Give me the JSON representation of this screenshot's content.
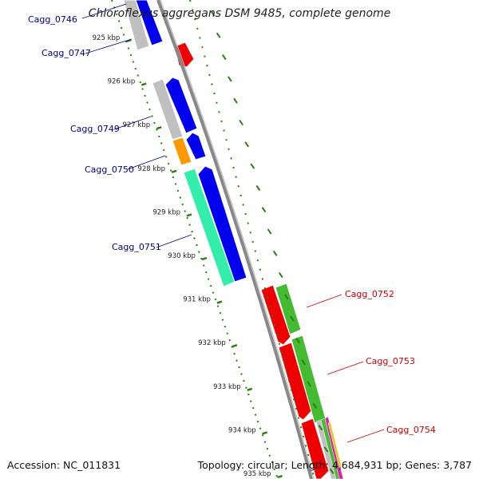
{
  "title": "Chloroflexus aggregans DSM 9485, complete genome",
  "accession_text": "Accession: NC_011831",
  "summary_text": "Topology: circular; Length: 4,684,931 bp; Genes: 3,787",
  "colors": {
    "forward_label": "#00008b",
    "reverse_label": "#cc0000",
    "backbone": "#808080",
    "ticks": "#2e7d12",
    "cds_forward": "#0000ee",
    "cds_reverse": "#ee0000",
    "gc_green": "#44bb33",
    "teal": "#33eeaa",
    "orange": "#ff9900",
    "gray_feature": "#c0c0c0"
  },
  "tick_labels": [
    "925 kbp",
    "926 kbp",
    "927 kbp",
    "928 kbp",
    "929 kbp",
    "930 kbp",
    "931 kbp",
    "932 kbp",
    "933 kbp",
    "934 kbp",
    "935 kbp"
  ],
  "gene_labels": [
    {
      "text": "Cagg_0746",
      "strand": "forward"
    },
    {
      "text": "Cagg_0747",
      "strand": "forward"
    },
    {
      "text": "Cagg_0749",
      "strand": "forward"
    },
    {
      "text": "Cagg_0750",
      "strand": "forward"
    },
    {
      "text": "Cagg_0751",
      "strand": "forward"
    },
    {
      "text": "Cagg_0752",
      "strand": "reverse"
    },
    {
      "text": "Cagg_0753",
      "strand": "reverse"
    },
    {
      "text": "Cagg_0754",
      "strand": "reverse"
    }
  ]
}
